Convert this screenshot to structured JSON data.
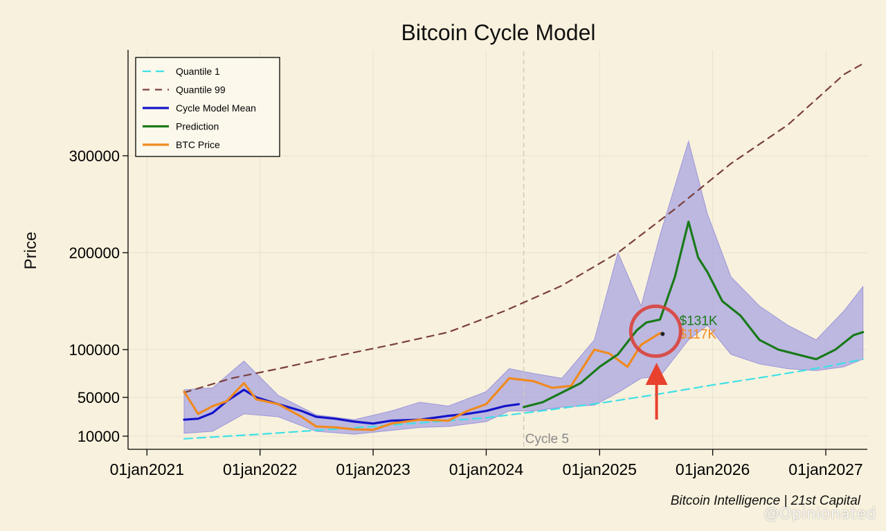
{
  "chart_data": {
    "type": "line",
    "title": "Bitcoin Cycle Model",
    "ylabel": "Price",
    "xlabel": "",
    "xlim": [
      "2020-11-01",
      "2027-05-15"
    ],
    "ylim": [
      0,
      420000
    ],
    "y_ticks": [
      {
        "value": 10000,
        "label": "10000"
      },
      {
        "value": 50000,
        "label": "50000"
      },
      {
        "value": 100000,
        "label": "100000"
      },
      {
        "value": 200000,
        "label": "200000"
      },
      {
        "value": 300000,
        "label": "300000"
      }
    ],
    "x_ticks": [
      {
        "value": "2021-01-01",
        "label": "01jan2021"
      },
      {
        "value": "2022-01-01",
        "label": "01jan2022"
      },
      {
        "value": "2023-01-01",
        "label": "01jan2023"
      },
      {
        "value": "2024-01-01",
        "label": "01jan2024"
      },
      {
        "value": "2025-01-01",
        "label": "01jan2025"
      },
      {
        "value": "2026-01-01",
        "label": "01jan2026"
      },
      {
        "value": "2027-01-01",
        "label": "01jan2027"
      }
    ],
    "grid": true,
    "legend_position": "top-left",
    "series": [
      {
        "name": "Quantile 1",
        "style": "dashed",
        "color": "#3ee0e6",
        "x": [
          "2021-05-01",
          "2022-01-01",
          "2023-01-01",
          "2024-01-01",
          "2024-06-01",
          "2025-01-01",
          "2025-07-01",
          "2026-01-01",
          "2026-07-01",
          "2027-01-01",
          "2027-05-01"
        ],
        "y": [
          8000,
          12000,
          20000,
          29000,
          35000,
          44000,
          53000,
          63000,
          72000,
          82000,
          90000
        ]
      },
      {
        "name": "Quantile 99",
        "style": "dashed",
        "color": "#7a3f3c",
        "x": [
          "2021-05-01",
          "2021-10-01",
          "2022-03-01",
          "2022-09-01",
          "2023-03-01",
          "2023-09-01",
          "2024-03-01",
          "2024-09-01",
          "2025-03-01",
          "2025-09-01",
          "2026-03-01",
          "2026-09-01",
          "2027-03-01",
          "2027-05-01"
        ],
        "y": [
          55000,
          70000,
          80000,
          93000,
          105000,
          118000,
          140000,
          166000,
          200000,
          245000,
          292000,
          332000,
          384000,
          395000
        ]
      },
      {
        "name": "Cycle Model Mean",
        "style": "solid",
        "color": "#1414c8",
        "x": [
          "2021-05-01",
          "2021-06-15",
          "2021-08-01",
          "2021-09-15",
          "2021-11-10",
          "2021-12-20",
          "2022-03-01",
          "2022-05-15",
          "2022-07-01",
          "2022-09-01",
          "2022-11-01",
          "2023-01-01",
          "2023-03-01",
          "2023-06-01",
          "2023-09-01",
          "2023-11-01",
          "2024-01-01",
          "2024-03-01",
          "2024-04-15"
        ],
        "y": [
          27000,
          28000,
          34000,
          46000,
          58000,
          50000,
          43000,
          36000,
          30000,
          28000,
          25000,
          23000,
          26000,
          27000,
          31000,
          33000,
          36000,
          41000,
          43000
        ]
      },
      {
        "name": "Prediction",
        "style": "solid",
        "color": "#197a19",
        "x": [
          "2024-05-01",
          "2024-07-01",
          "2024-09-01",
          "2024-11-01",
          "2025-01-01",
          "2025-03-01",
          "2025-05-01",
          "2025-06-01",
          "2025-07-15",
          "2025-09-01",
          "2025-10-15",
          "2025-11-15",
          "2025-12-15",
          "2026-02-01",
          "2026-04-01",
          "2026-06-01",
          "2026-08-01",
          "2026-10-01",
          "2026-12-01",
          "2027-02-01",
          "2027-04-01",
          "2027-05-01"
        ],
        "y": [
          40000,
          45000,
          55000,
          65000,
          82000,
          95000,
          120000,
          128000,
          131000,
          175000,
          232000,
          195000,
          180000,
          150000,
          135000,
          110000,
          100000,
          95000,
          90000,
          100000,
          115000,
          118000
        ]
      },
      {
        "name": "BTC Price",
        "style": "solid",
        "color": "#f08a1e",
        "x": [
          "2021-05-01",
          "2021-06-15",
          "2021-08-01",
          "2021-09-15",
          "2021-11-10",
          "2021-12-20",
          "2022-03-01",
          "2022-05-15",
          "2022-07-01",
          "2022-09-01",
          "2022-11-01",
          "2023-01-01",
          "2023-03-01",
          "2023-06-01",
          "2023-09-01",
          "2023-11-01",
          "2024-01-01",
          "2024-03-15",
          "2024-06-01",
          "2024-08-01",
          "2024-10-01",
          "2024-12-15",
          "2025-02-01",
          "2025-04-01",
          "2025-05-15",
          "2025-07-15"
        ],
        "y": [
          56000,
          33000,
          41000,
          46000,
          65000,
          48000,
          43000,
          30000,
          20000,
          19000,
          17000,
          16500,
          23000,
          27000,
          26000,
          36000,
          43000,
          70000,
          67000,
          60000,
          62000,
          100000,
          96000,
          82000,
          105000,
          117000
        ]
      }
    ],
    "band": {
      "name": "range band",
      "color": "#a9a4e0",
      "x": [
        "2021-05-01",
        "2021-08-01",
        "2021-11-10",
        "2022-03-01",
        "2022-07-01",
        "2022-11-01",
        "2023-03-01",
        "2023-06-01",
        "2023-09-01",
        "2024-01-01",
        "2024-03-15",
        "2024-06-01",
        "2024-09-01",
        "2024-12-15",
        "2025-03-01",
        "2025-05-15",
        "2025-07-15",
        "2025-10-15",
        "2025-12-15",
        "2026-03-01",
        "2026-06-01",
        "2026-09-01",
        "2026-12-01",
        "2027-03-01",
        "2027-05-01"
      ],
      "upper": [
        58000,
        60000,
        88000,
        52000,
        32000,
        27000,
        36000,
        45000,
        41000,
        56000,
        80000,
        75000,
        70000,
        110000,
        200000,
        145000,
        218000,
        315000,
        240000,
        175000,
        145000,
        125000,
        110000,
        140000,
        165000
      ],
      "lower": [
        13000,
        15000,
        33000,
        30000,
        15000,
        12000,
        16000,
        19000,
        20000,
        25000,
        36000,
        36000,
        40000,
        42000,
        55000,
        70000,
        72000,
        110000,
        125000,
        95000,
        85000,
        80000,
        78000,
        82000,
        90000
      ]
    },
    "annotations": [
      {
        "text": "Cycle 5",
        "x": "2024-05-01",
        "type": "vline-label",
        "color": "#8a8a8a"
      },
      {
        "text": "$131K",
        "x": "2025-07-15",
        "y": 131000,
        "color": "#197a19"
      },
      {
        "text": "$117K",
        "x": "2025-07-15",
        "y": 117000,
        "color": "#f08a1e"
      },
      {
        "text": "highlight circle",
        "x": "2025-07-01",
        "y": 119000,
        "type": "circle",
        "color": "#d9433b"
      },
      {
        "text": "arrow",
        "x": "2025-07-15",
        "y": 100000,
        "type": "arrow",
        "color": "#e8412e"
      }
    ],
    "source": "Bitcoin Intelligence | 21st Capital"
  },
  "watermark": "@Opinionated"
}
